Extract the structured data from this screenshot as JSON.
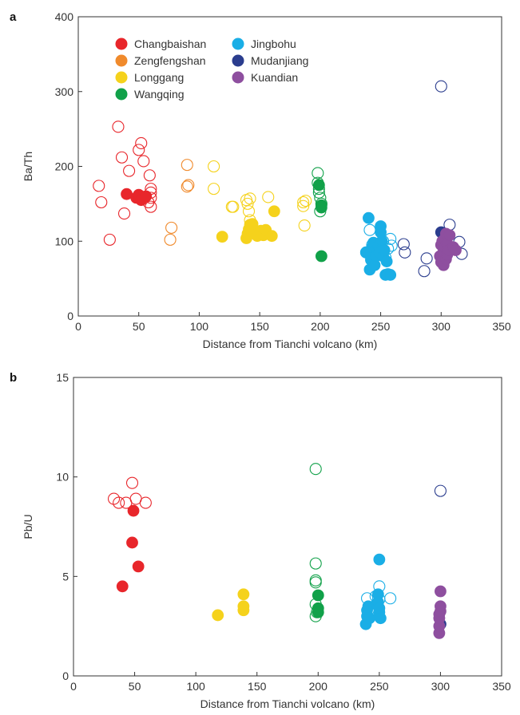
{
  "chart_data": [
    {
      "type": "scatter",
      "panel_label": "a",
      "xlabel": "Distance from Tianchi volcano (km)",
      "ylabel": "Ba/Th",
      "xlim": [
        0,
        350
      ],
      "ylim": [
        0,
        400
      ],
      "xticks": [
        0,
        50,
        100,
        150,
        200,
        250,
        300,
        350
      ],
      "yticks": [
        0,
        100,
        200,
        300,
        400
      ],
      "grid": false,
      "legend": {
        "placement": "top-left",
        "entries": [
          {
            "name": "Changbaishan",
            "color": "#e8262b"
          },
          {
            "name": "Zengfengshan",
            "color": "#f08a2c"
          },
          {
            "name": "Longgang",
            "color": "#f5d21c"
          },
          {
            "name": "Wangqing",
            "color": "#11a149"
          },
          {
            "name": "Jingbohu",
            "color": "#1aaee6"
          },
          {
            "name": "Mudanjiang",
            "color": "#2b3d8e"
          },
          {
            "name": "Kuandian",
            "color": "#8e4f9f"
          }
        ]
      },
      "series": [
        {
          "name": "Changbaishan",
          "style": "open",
          "color": "#e8262b",
          "points": [
            [
              17,
              174
            ],
            [
              19,
              152
            ],
            [
              26,
              102
            ],
            [
              33,
              253
            ],
            [
              36,
              212
            ],
            [
              38,
              137
            ],
            [
              42,
              194
            ],
            [
              50,
              222
            ],
            [
              52,
              231
            ],
            [
              54,
              207
            ],
            [
              58,
              152
            ],
            [
              59,
              188
            ],
            [
              60,
              170
            ],
            [
              60,
              165
            ],
            [
              60,
              158
            ],
            [
              60,
              146
            ]
          ]
        },
        {
          "name": "Changbaishan",
          "style": "filled",
          "color": "#e8262b",
          "points": [
            [
              40,
              163
            ],
            [
              48,
              158
            ],
            [
              50,
              162
            ],
            [
              52,
              155
            ],
            [
              56,
              160
            ]
          ]
        },
        {
          "name": "Zengfengshan",
          "style": "open",
          "color": "#f08a2c",
          "points": [
            [
              76,
              102
            ],
            [
              77,
              118
            ],
            [
              90,
              173
            ],
            [
              90,
              202
            ],
            [
              91,
              175
            ]
          ]
        },
        {
          "name": "Longgang",
          "style": "open",
          "color": "#f5d21c",
          "points": [
            [
              112,
              200
            ],
            [
              112,
              170
            ],
            [
              127,
              146
            ],
            [
              128,
              146
            ],
            [
              139,
              155
            ],
            [
              140,
              150
            ],
            [
              141,
              140
            ],
            [
              142,
              128
            ],
            [
              142,
              157
            ],
            [
              157,
              159
            ],
            [
              186,
              147
            ],
            [
              186,
              152
            ],
            [
              187,
              121
            ],
            [
              188,
              154
            ]
          ]
        },
        {
          "name": "Longgang",
          "style": "filled",
          "color": "#f5d21c",
          "points": [
            [
              119,
              106
            ],
            [
              139,
              104
            ],
            [
              140,
              110
            ],
            [
              141,
              116
            ],
            [
              142,
              122
            ],
            [
              143,
              113
            ],
            [
              144,
              123
            ],
            [
              148,
              107
            ],
            [
              151,
              114
            ],
            [
              153,
              108
            ],
            [
              155,
              115
            ],
            [
              160,
              107
            ],
            [
              162,
              140
            ]
          ]
        },
        {
          "name": "Wangqing",
          "style": "open",
          "color": "#11a149",
          "points": [
            [
              198,
              191
            ],
            [
              198,
              178
            ],
            [
              199,
              170
            ],
            [
              199,
              165
            ],
            [
              200,
              158
            ],
            [
              200,
              140
            ],
            [
              201,
              150
            ]
          ]
        },
        {
          "name": "Wangqing",
          "style": "filled",
          "color": "#11a149",
          "points": [
            [
              199,
              175
            ],
            [
              201,
              148
            ],
            [
              201,
              145
            ],
            [
              201,
              80
            ]
          ]
        },
        {
          "name": "Jingbohu",
          "style": "open",
          "color": "#1aaee6",
          "points": [
            [
              238,
              85
            ],
            [
              241,
              115
            ],
            [
              243,
              95
            ],
            [
              246,
              88
            ],
            [
              248,
              92
            ],
            [
              252,
              100
            ],
            [
              254,
              78
            ],
            [
              256,
              90
            ],
            [
              258,
              103
            ],
            [
              259,
              94
            ]
          ]
        },
        {
          "name": "Jingbohu",
          "style": "filled",
          "color": "#1aaee6",
          "points": [
            [
              238,
              85
            ],
            [
              240,
              131
            ],
            [
              241,
              62
            ],
            [
              242,
              75
            ],
            [
              243,
              92
            ],
            [
              244,
              98
            ],
            [
              245,
              68
            ],
            [
              246,
              80
            ],
            [
              247,
              90
            ],
            [
              248,
              94
            ],
            [
              249,
              85
            ],
            [
              250,
              112
            ],
            [
              250,
              120
            ],
            [
              251,
              100
            ],
            [
              252,
              80
            ],
            [
              253,
              88
            ],
            [
              254,
              55
            ],
            [
              255,
              73
            ],
            [
              256,
              56
            ],
            [
              258,
              55
            ]
          ]
        },
        {
          "name": "Mudanjiang",
          "style": "open",
          "color": "#2b3d8e",
          "points": [
            [
              269,
              96
            ],
            [
              270,
              85
            ],
            [
              286,
              60
            ],
            [
              288,
              77
            ],
            [
              300,
              307
            ],
            [
              307,
              122
            ],
            [
              315,
              99
            ],
            [
              317,
              83
            ]
          ]
        },
        {
          "name": "Mudanjiang",
          "style": "filled",
          "color": "#2b3d8e",
          "points": [
            [
              300,
              112
            ]
          ]
        },
        {
          "name": "Kuandian",
          "style": "filled",
          "color": "#8e4f9f",
          "points": [
            [
              299,
              80
            ],
            [
              300,
              95
            ],
            [
              300,
              72
            ],
            [
              301,
              100
            ],
            [
              302,
              86
            ],
            [
              302,
              68
            ],
            [
              303,
              103
            ],
            [
              303,
              92
            ],
            [
              304,
              76
            ],
            [
              304,
              110
            ],
            [
              305,
              97
            ],
            [
              305,
              82
            ],
            [
              306,
              88
            ],
            [
              307,
              108
            ],
            [
              310,
              92
            ],
            [
              312,
              88
            ]
          ]
        }
      ]
    },
    {
      "type": "scatter",
      "panel_label": "b",
      "xlabel": "Distance from Tianchi volcano (km)",
      "ylabel": "Pb/U",
      "xlim": [
        0,
        350
      ],
      "ylim": [
        0,
        15
      ],
      "xticks": [
        0,
        50,
        100,
        150,
        200,
        250,
        300,
        350
      ],
      "yticks": [
        0,
        5,
        10,
        15
      ],
      "grid": false,
      "series": [
        {
          "name": "Changbaishan",
          "style": "open",
          "color": "#e8262b",
          "points": [
            [
              33,
              8.9
            ],
            [
              37,
              8.7
            ],
            [
              43,
              8.7
            ],
            [
              48,
              9.7
            ],
            [
              51,
              8.9
            ],
            [
              59,
              8.7
            ]
          ]
        },
        {
          "name": "Changbaishan",
          "style": "filled",
          "color": "#e8262b",
          "points": [
            [
              40,
              4.5
            ],
            [
              48,
              6.7
            ],
            [
              49,
              8.3
            ],
            [
              53,
              5.5
            ]
          ]
        },
        {
          "name": "Longgang",
          "style": "filled",
          "color": "#f5d21c",
          "points": [
            [
              118,
              3.05
            ],
            [
              139,
              3.3
            ],
            [
              139,
              3.5
            ],
            [
              139,
              4.1
            ]
          ]
        },
        {
          "name": "Wangqing",
          "style": "open",
          "color": "#11a149",
          "points": [
            [
              198,
              10.4
            ],
            [
              198,
              5.65
            ],
            [
              198,
              4.8
            ],
            [
              198,
              4.7
            ],
            [
              198,
              3.6
            ],
            [
              198,
              3.0
            ],
            [
              199,
              3.2
            ]
          ]
        },
        {
          "name": "Wangqing",
          "style": "filled",
          "color": "#11a149",
          "points": [
            [
              200,
              4.05
            ],
            [
              200,
              3.4
            ],
            [
              200,
              3.2
            ]
          ]
        },
        {
          "name": "Jingbohu",
          "style": "open",
          "color": "#1aaee6",
          "points": [
            [
              240,
              3.9
            ],
            [
              241,
              3.3
            ],
            [
              247,
              4.0
            ],
            [
              250,
              4.5
            ],
            [
              250,
              3.85
            ],
            [
              259,
              3.9
            ]
          ]
        },
        {
          "name": "Jingbohu",
          "style": "filled",
          "color": "#1aaee6",
          "points": [
            [
              239,
              2.6
            ],
            [
              240,
              3.0
            ],
            [
              240,
              3.3
            ],
            [
              241,
              3.5
            ],
            [
              242,
              2.9
            ],
            [
              248,
              3.6
            ],
            [
              249,
              4.1
            ],
            [
              249,
              3.7
            ],
            [
              250,
              3.2
            ],
            [
              250,
              3.4
            ],
            [
              250,
              5.85
            ],
            [
              251,
              2.9
            ]
          ]
        },
        {
          "name": "Mudanjiang",
          "style": "open",
          "color": "#2b3d8e",
          "points": [
            [
              300,
              9.3
            ]
          ]
        },
        {
          "name": "Mudanjiang",
          "style": "filled",
          "color": "#2b3d8e",
          "points": [
            [
              300,
              2.6
            ]
          ]
        },
        {
          "name": "Kuandian",
          "style": "filled",
          "color": "#8e4f9f",
          "points": [
            [
              299,
              2.15
            ],
            [
              299,
              2.5
            ],
            [
              299,
              2.9
            ],
            [
              299,
              3.1
            ],
            [
              300,
              3.25
            ],
            [
              300,
              3.5
            ],
            [
              300,
              4.25
            ]
          ]
        }
      ]
    }
  ]
}
